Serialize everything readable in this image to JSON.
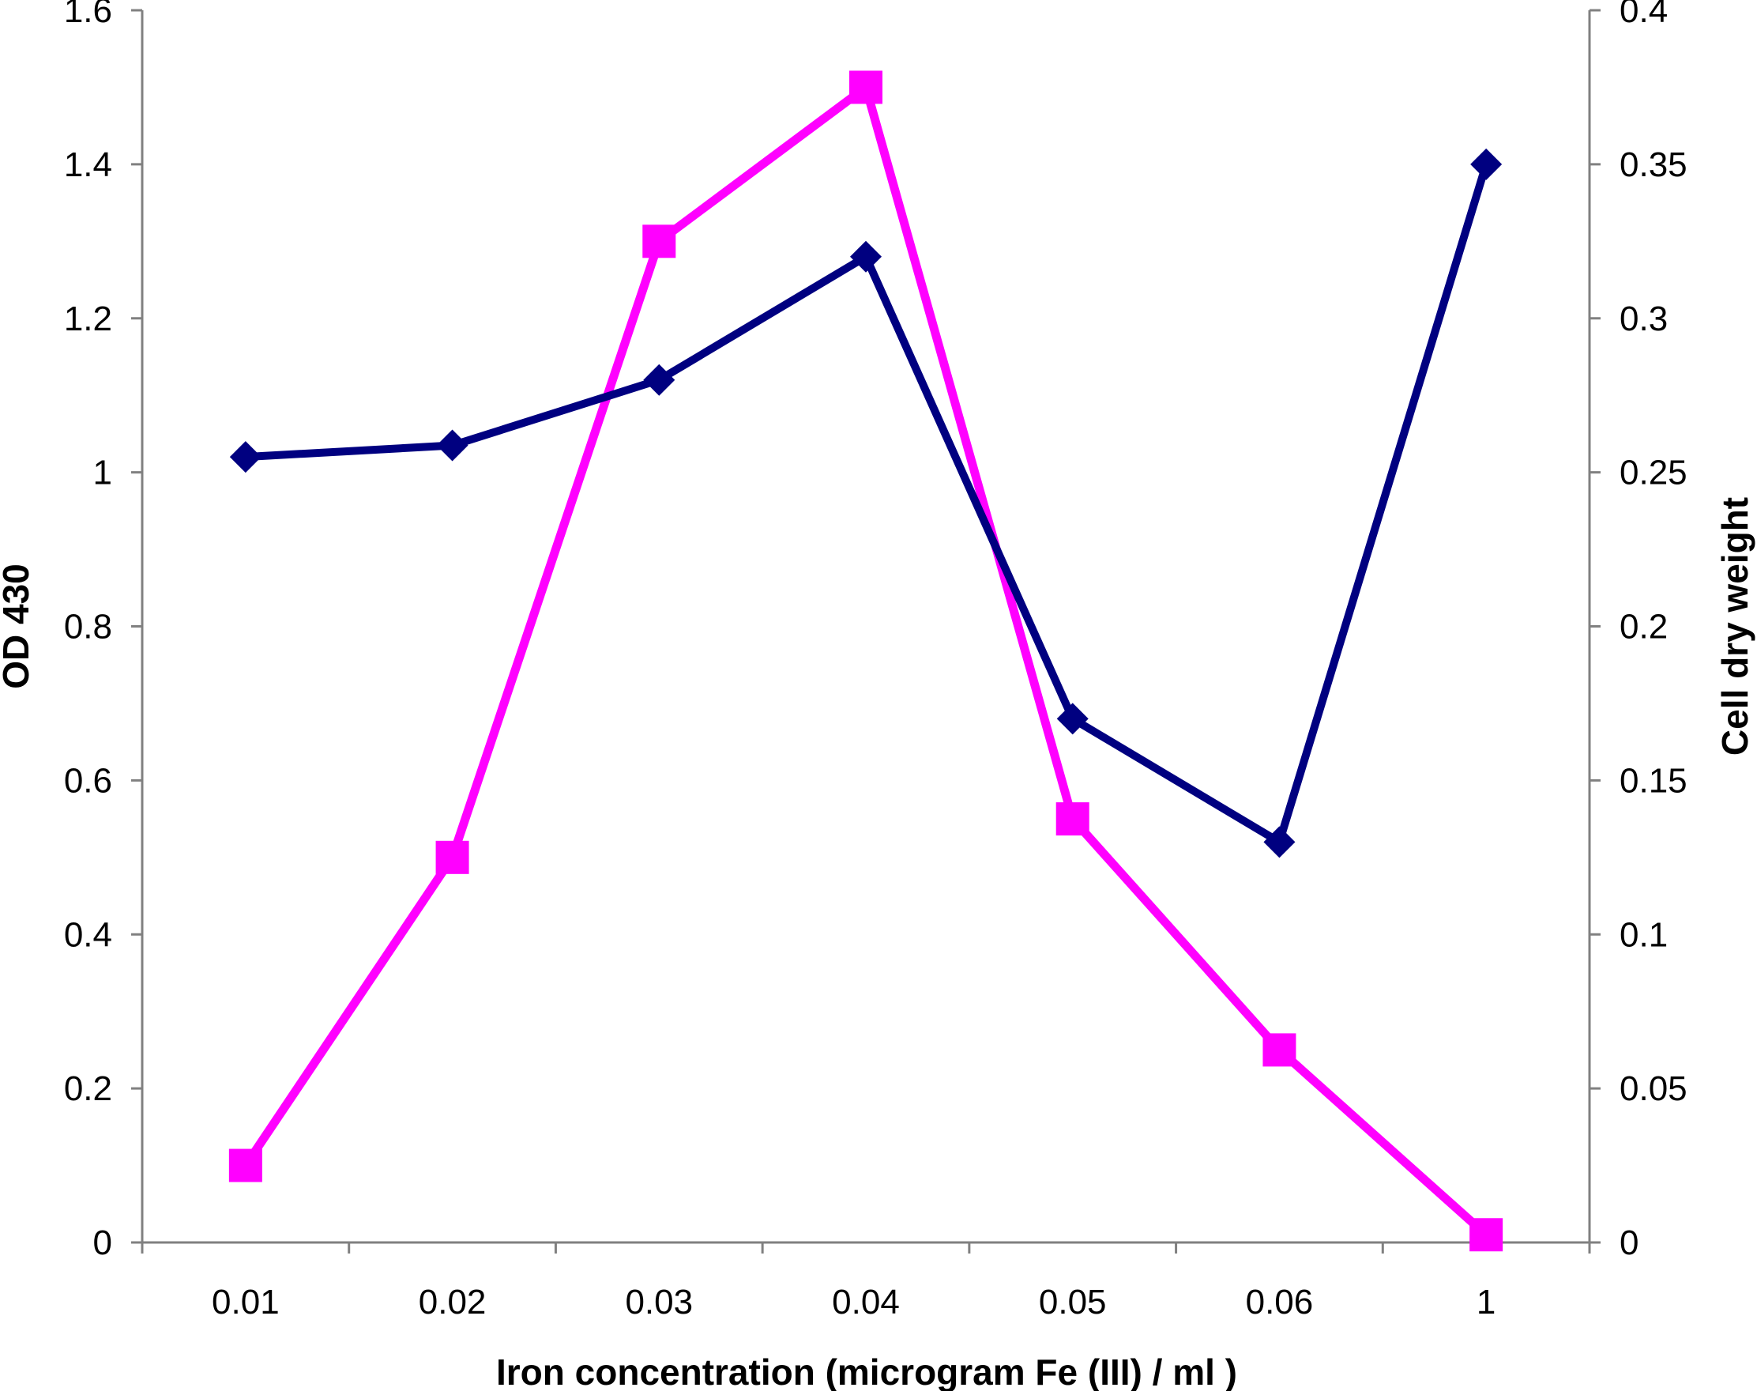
{
  "chart_data": {
    "type": "line",
    "title": "",
    "xlabel": "Iron concentration  (microgram Fe (III) / ml )",
    "ylabel_left": "OD 430",
    "ylabel_right": "Cell dry weight",
    "categories": [
      "0.01",
      "0.02",
      "0.03",
      "0.04",
      "0.05",
      "0.06",
      "1"
    ],
    "ylim_left": [
      0,
      1.6
    ],
    "yticks_left": [
      "0",
      "0.2",
      "0.4",
      "0.6",
      "0.8",
      "1",
      "1.2",
      "1.4",
      "1.6"
    ],
    "ylim_right": [
      0,
      0.4
    ],
    "yticks_right": [
      "0",
      "0.05",
      "0.1",
      "0.15",
      "0.2",
      "0.25",
      "0.3",
      "0.35",
      "0.4"
    ],
    "grid": false,
    "legend": "none",
    "series": [
      {
        "axis": "left",
        "marker": "diamond",
        "color": "#000080",
        "values": [
          1.02,
          1.035,
          1.12,
          1.28,
          0.68,
          0.52,
          1.4
        ]
      },
      {
        "axis": "right",
        "marker": "square",
        "color": "#FF00FF",
        "values": [
          0.025,
          0.125,
          0.325,
          0.375,
          0.1375,
          0.0625,
          0.0025
        ]
      }
    ]
  }
}
